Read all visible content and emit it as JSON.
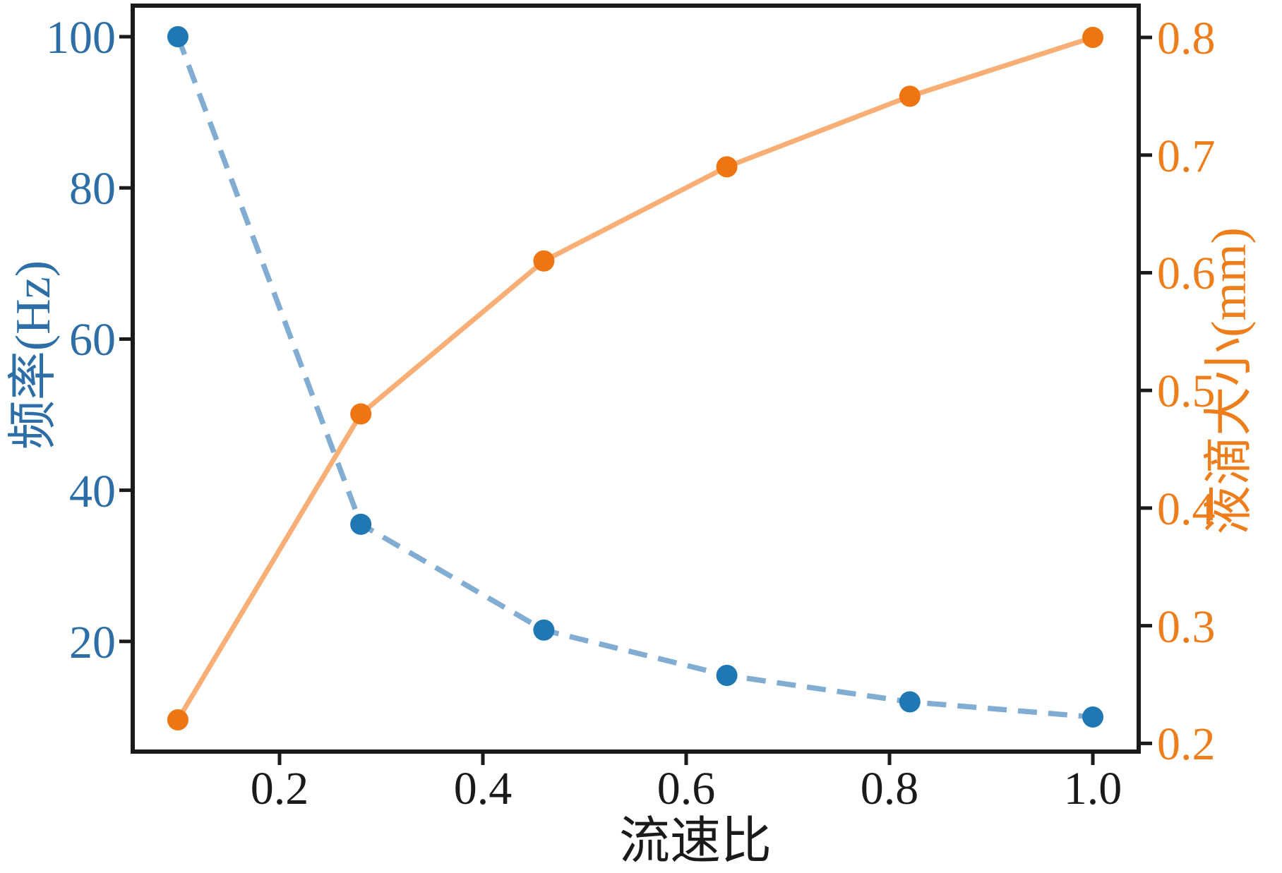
{
  "chart_data": {
    "type": "line",
    "title": "",
    "xlabel": "流速比",
    "ylabel_left": "频率(Hz)",
    "ylabel_right": "液滴大小(mm)",
    "x": [
      0.1,
      0.28,
      0.46,
      0.64,
      0.82,
      1.0
    ],
    "series": [
      {
        "name": "频率",
        "axis": "left",
        "values": [
          100,
          35.5,
          21.5,
          15.5,
          12,
          10
        ],
        "marker": "circle",
        "marker_color": "#1f77b4",
        "line_color": "#82add2",
        "line_style": "dashed"
      },
      {
        "name": "液滴大小",
        "axis": "right",
        "values": [
          0.22,
          0.48,
          0.61,
          0.69,
          0.75,
          0.8
        ],
        "marker": "circle",
        "marker_color": "#ee7512",
        "line_color": "#f9ae75",
        "line_style": "solid"
      }
    ],
    "xlim": [
      0.0556,
      1.0451
    ],
    "ylim_left": [
      5.42,
      104.11
    ],
    "ylim_right": [
      0.193,
      0.827
    ],
    "xticks": {
      "values": [
        0.2,
        0.4,
        0.6,
        0.8,
        1.0
      ],
      "labels": [
        "0.2",
        "0.4",
        "0.6",
        "0.8",
        "1.0"
      ]
    },
    "yticks_left": {
      "values": [
        20,
        40,
        60,
        80,
        100
      ],
      "labels": [
        "20",
        "40",
        "60",
        "80",
        "100"
      ]
    },
    "yticks_right": {
      "values": [
        0.2,
        0.3,
        0.4,
        0.5,
        0.6,
        0.7,
        0.8
      ],
      "labels": [
        "0.2",
        "0.3",
        "0.4",
        "0.5",
        "0.6",
        "0.7",
        "0.8"
      ]
    },
    "axis_colors": {
      "x_text": "#1a1a1a",
      "left_text": "#2d6ea6",
      "right_text": "#ee7d1c",
      "spine": "#1a1a1a"
    },
    "grid": false,
    "legend": "none"
  }
}
